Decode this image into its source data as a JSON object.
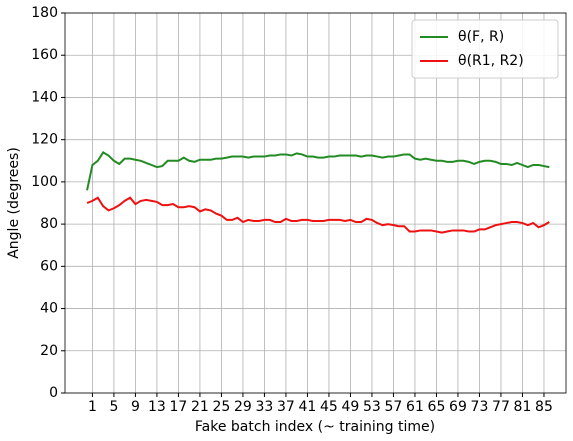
{
  "chart_data": {
    "type": "line",
    "x_label": "Fake batch index (~ training time)",
    "y_label": "Angle (degrees)",
    "x": [
      0,
      1,
      2,
      3,
      4,
      5,
      6,
      7,
      8,
      9,
      10,
      11,
      12,
      13,
      14,
      15,
      16,
      17,
      18,
      19,
      20,
      21,
      22,
      23,
      24,
      25,
      26,
      27,
      28,
      29,
      30,
      31,
      32,
      33,
      34,
      35,
      36,
      37,
      38,
      39,
      40,
      41,
      42,
      43,
      44,
      45,
      46,
      47,
      48,
      49,
      50,
      51,
      52,
      53,
      54,
      55,
      56,
      57,
      58,
      59,
      60,
      61,
      62,
      63,
      64,
      65,
      66,
      67,
      68,
      69,
      70,
      71,
      72,
      73,
      74,
      75,
      76,
      77,
      78,
      79,
      80,
      81,
      82,
      83,
      84,
      85,
      86
    ],
    "series": [
      {
        "name": "θ(F, R)",
        "color": "#238b23",
        "values": [
          96,
          108,
          110,
          114,
          112.5,
          110,
          108.5,
          111,
          111,
          110.5,
          110,
          109,
          108,
          107,
          107.5,
          110,
          110,
          110,
          111.5,
          110,
          109.5,
          110.5,
          110.5,
          110.5,
          111,
          111,
          111.5,
          112,
          112,
          112,
          111.5,
          112,
          112,
          112,
          112.5,
          112.5,
          113,
          113,
          112.5,
          113.5,
          113,
          112,
          112,
          111.5,
          111.5,
          112,
          112,
          112.5,
          112.5,
          112.5,
          112.5,
          112,
          112.5,
          112.5,
          112,
          111.5,
          112,
          112,
          112.5,
          113,
          113,
          111,
          110.5,
          111,
          110.5,
          110,
          110,
          109.5,
          109.5,
          110,
          110,
          109.5,
          108.5,
          109.5,
          110,
          110,
          109.5,
          108.5,
          108.5,
          108,
          109,
          108,
          107,
          108,
          108,
          107.5,
          107
        ]
      },
      {
        "name": "θ(R1, R2)",
        "color": "#ee1111",
        "values": [
          90,
          91,
          92.5,
          88.5,
          86.5,
          87.5,
          89,
          91,
          92.5,
          89.5,
          91,
          91.5,
          91,
          90.5,
          89,
          89,
          89.5,
          88,
          88,
          88.5,
          88,
          86,
          87,
          86.5,
          85,
          84,
          82,
          82,
          83,
          81,
          82,
          81.5,
          81.5,
          82,
          82,
          81,
          81,
          82.5,
          81.5,
          81.5,
          82,
          82,
          81.5,
          81.5,
          81.5,
          82,
          82,
          82,
          81.5,
          82,
          81,
          81,
          82.5,
          82,
          80.5,
          79.5,
          80,
          79.5,
          79,
          79,
          76.5,
          76.5,
          77,
          77,
          77,
          76.5,
          76,
          76.5,
          77,
          77,
          77,
          76.5,
          76.5,
          77.5,
          77.5,
          78.5,
          79.5,
          80,
          80.5,
          81,
          81,
          80.5,
          79.5,
          80.5,
          78.5,
          79.5,
          81
        ]
      }
    ],
    "xlim": [
      -4.1,
      89.1
    ],
    "xticks": [
      1,
      5,
      9,
      13,
      17,
      21,
      25,
      29,
      33,
      37,
      41,
      45,
      49,
      53,
      57,
      61,
      65,
      69,
      73,
      77,
      81,
      85
    ],
    "ylim": [
      0,
      180
    ],
    "yticks": [
      0,
      20,
      40,
      60,
      80,
      100,
      120,
      140,
      160,
      180
    ],
    "grid": true,
    "legend": "upper right"
  }
}
